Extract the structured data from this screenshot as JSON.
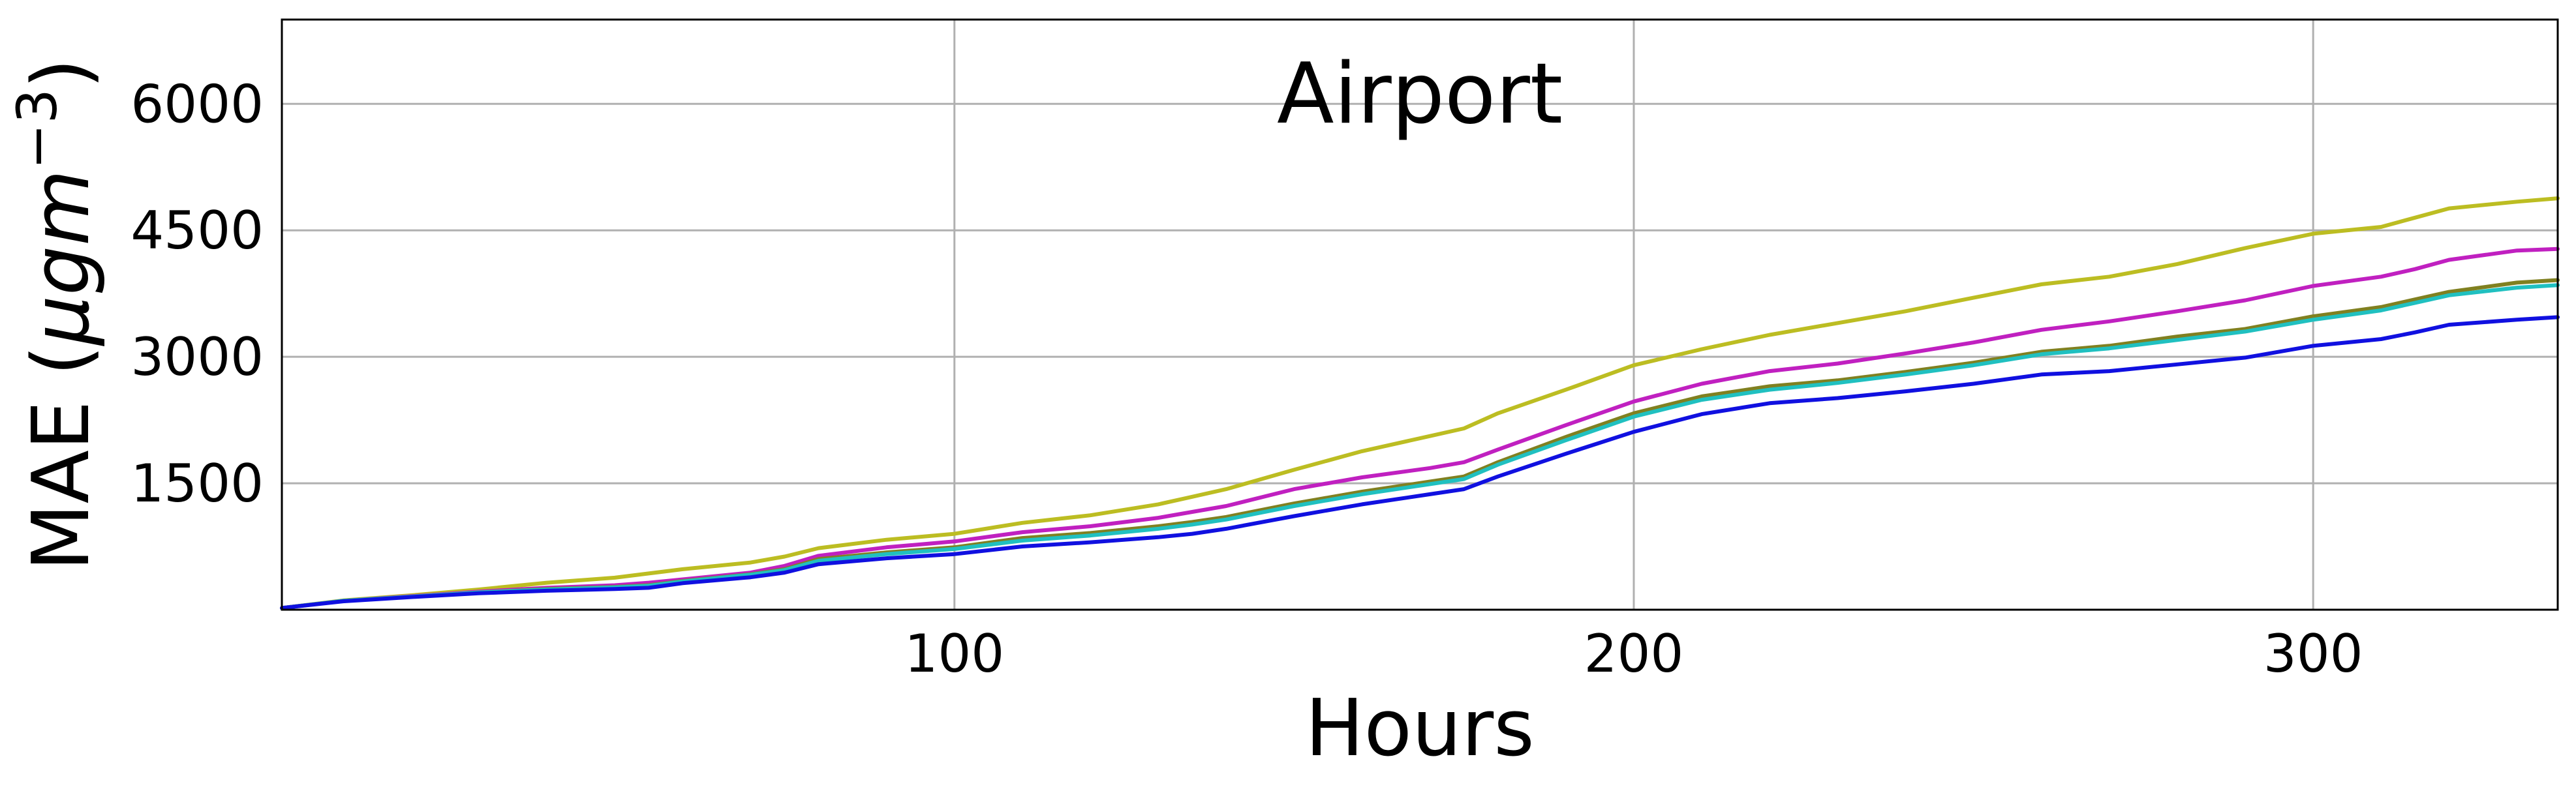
{
  "chart_data": {
    "type": "line",
    "title": "Airport",
    "xlabel": "Hours",
    "ylabel": "MAE (μgm⁻³)",
    "ylabel_parts": {
      "main": "MAE (",
      "mu": "μ",
      "g": "g",
      "m": "m",
      "sup": "−3",
      "close": ")"
    },
    "xlim": [
      1,
      336
    ],
    "ylim": [
      0,
      7000
    ],
    "xticks": [
      100,
      200,
      300
    ],
    "xtick_labels": [
      "100",
      "200",
      "300"
    ],
    "yticks": [
      1500,
      3000,
      4500,
      6000
    ],
    "ytick_labels": [
      "1500",
      "3000",
      "4500",
      "6000"
    ],
    "grid": true,
    "x": [
      1,
      10,
      20,
      30,
      40,
      50,
      55,
      60,
      70,
      75,
      80,
      90,
      100,
      110,
      120,
      130,
      135,
      140,
      150,
      160,
      170,
      175,
      180,
      190,
      200,
      210,
      220,
      230,
      240,
      250,
      260,
      270,
      280,
      290,
      300,
      310,
      315,
      320,
      330,
      336
    ],
    "series": [
      {
        "color": "#bcbd22",
        "values": [
          20,
          110,
          170,
          240,
          320,
          380,
          430,
          480,
          560,
          630,
          730,
          830,
          900,
          1030,
          1120,
          1250,
          1340,
          1430,
          1660,
          1880,
          2060,
          2150,
          2330,
          2610,
          2900,
          3090,
          3260,
          3400,
          3540,
          3700,
          3860,
          3950,
          4100,
          4290,
          4460,
          4540,
          4650,
          4760,
          4840,
          4880
        ]
      },
      {
        "color": "#c020c0",
        "values": [
          20,
          105,
          160,
          215,
          260,
          290,
          320,
          360,
          440,
          520,
          640,
          740,
          810,
          920,
          990,
          1090,
          1160,
          1230,
          1430,
          1570,
          1680,
          1750,
          1900,
          2190,
          2470,
          2680,
          2830,
          2920,
          3040,
          3170,
          3320,
          3420,
          3540,
          3670,
          3840,
          3950,
          4040,
          4150,
          4260,
          4280
        ]
      },
      {
        "color": "#808020",
        "values": [
          20,
          105,
          155,
          205,
          245,
          270,
          290,
          340,
          420,
          480,
          600,
          680,
          740,
          850,
          910,
          990,
          1040,
          1100,
          1260,
          1400,
          1520,
          1580,
          1750,
          2050,
          2330,
          2530,
          2650,
          2720,
          2820,
          2930,
          3060,
          3130,
          3240,
          3330,
          3480,
          3590,
          3680,
          3770,
          3880,
          3910
        ]
      },
      {
        "color": "#20c0c0",
        "values": [
          20,
          105,
          155,
          205,
          240,
          265,
          285,
          335,
          415,
          470,
          580,
          660,
          720,
          820,
          880,
          960,
          1010,
          1070,
          1230,
          1370,
          1490,
          1550,
          1720,
          2010,
          2290,
          2490,
          2610,
          2690,
          2790,
          2900,
          3030,
          3100,
          3200,
          3300,
          3440,
          3550,
          3640,
          3730,
          3820,
          3850
        ]
      },
      {
        "color": "#1010e0",
        "values": [
          20,
          100,
          150,
          195,
          225,
          245,
          260,
          315,
          385,
          440,
          540,
          610,
          660,
          750,
          800,
          860,
          900,
          960,
          1110,
          1250,
          1370,
          1430,
          1580,
          1850,
          2110,
          2320,
          2450,
          2510,
          2590,
          2680,
          2790,
          2830,
          2910,
          2990,
          3130,
          3210,
          3290,
          3380,
          3440,
          3470
        ]
      }
    ]
  }
}
